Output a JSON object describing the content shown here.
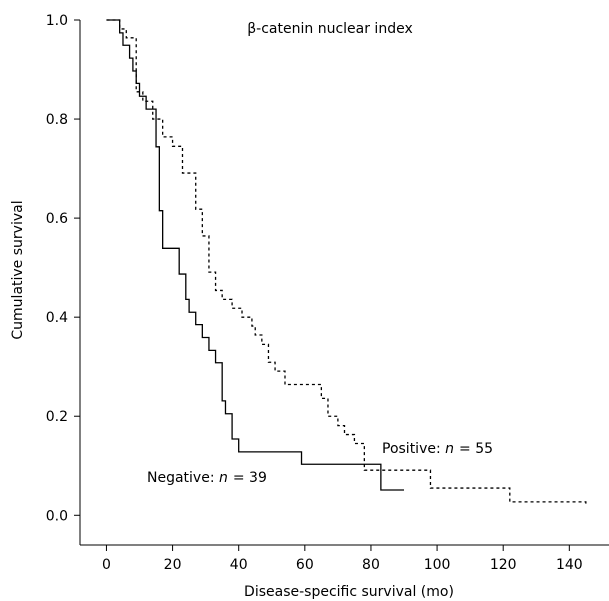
{
  "chart_data": {
    "type": "line",
    "subtype": "kaplan-meier step",
    "title": "β-catenin nuclear index",
    "xlabel": "Disease-specific survival (mo)",
    "ylabel": "Cumulative survival",
    "xlim": [
      -8,
      152
    ],
    "ylim": [
      -0.06,
      1.0
    ],
    "xticks": [
      0,
      20,
      40,
      60,
      80,
      100,
      120,
      140
    ],
    "yticks": [
      0.0,
      0.2,
      0.4,
      0.6,
      0.8,
      1.0
    ],
    "ytick_labels": [
      "0.0",
      "0.2",
      "0.4",
      "0.6",
      "0.8",
      "1.0"
    ],
    "grid": false,
    "series": [
      {
        "name": "Negative",
        "n_label_prefix": "Negative: ",
        "n_symbol": "n",
        "n_value": "= 39",
        "line_style": "solid",
        "color": "#000000",
        "x": [
          0,
          4,
          5,
          7,
          8,
          9,
          10,
          12,
          15,
          16,
          17,
          22,
          24,
          25,
          27,
          29,
          31,
          33,
          35,
          36,
          38,
          40,
          42,
          59,
          83,
          90
        ],
        "y": [
          1.0,
          0.974,
          0.949,
          0.923,
          0.897,
          0.872,
          0.846,
          0.82,
          0.744,
          0.615,
          0.539,
          0.487,
          0.436,
          0.41,
          0.385,
          0.359,
          0.333,
          0.308,
          0.231,
          0.205,
          0.154,
          0.128,
          0.128,
          0.103,
          0.051,
          0.051
        ]
      },
      {
        "name": "Positive",
        "n_label_prefix": "Positive: ",
        "n_symbol": "n",
        "n_value": "= 55",
        "line_style": "dashed",
        "color": "#000000",
        "x": [
          0,
          4,
          6,
          9,
          11,
          14,
          17,
          20,
          23,
          27,
          29,
          31,
          33,
          35,
          38,
          41,
          44,
          45,
          47,
          49,
          51,
          54,
          59,
          65,
          67,
          70,
          72,
          75,
          78,
          85,
          98,
          107,
          122,
          145
        ],
        "y": [
          1.0,
          0.982,
          0.964,
          0.855,
          0.836,
          0.8,
          0.764,
          0.745,
          0.691,
          0.618,
          0.564,
          0.491,
          0.454,
          0.436,
          0.418,
          0.4,
          0.382,
          0.364,
          0.345,
          0.309,
          0.291,
          0.264,
          0.264,
          0.236,
          0.2,
          0.181,
          0.163,
          0.145,
          0.091,
          0.091,
          0.055,
          0.055,
          0.027,
          0.018
        ]
      }
    ]
  }
}
